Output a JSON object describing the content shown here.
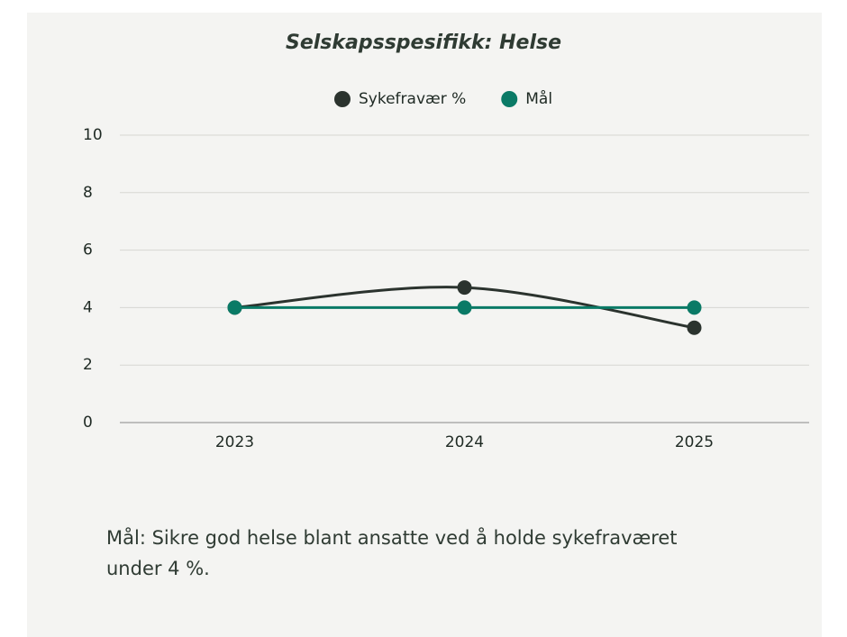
{
  "chart_data": {
    "type": "line",
    "title": "Selskapsspesifikk: Helse",
    "categories": [
      "2023",
      "2024",
      "2025"
    ],
    "series": [
      {
        "name": "Sykefravær %",
        "color": "#2b332e",
        "values": [
          4.0,
          4.7,
          3.3
        ],
        "smooth": true
      },
      {
        "name": "Mål",
        "color": "#0a7a66",
        "values": [
          4,
          4,
          4
        ],
        "smooth": false
      }
    ],
    "ylim": [
      0,
      10
    ],
    "yticks": [
      0,
      2,
      4,
      6,
      8,
      10
    ],
    "grid": true,
    "legend": "top",
    "annotation": "Mål: Sikre god helse blant ansatte ved å holde sykefraværet under 4 %."
  }
}
